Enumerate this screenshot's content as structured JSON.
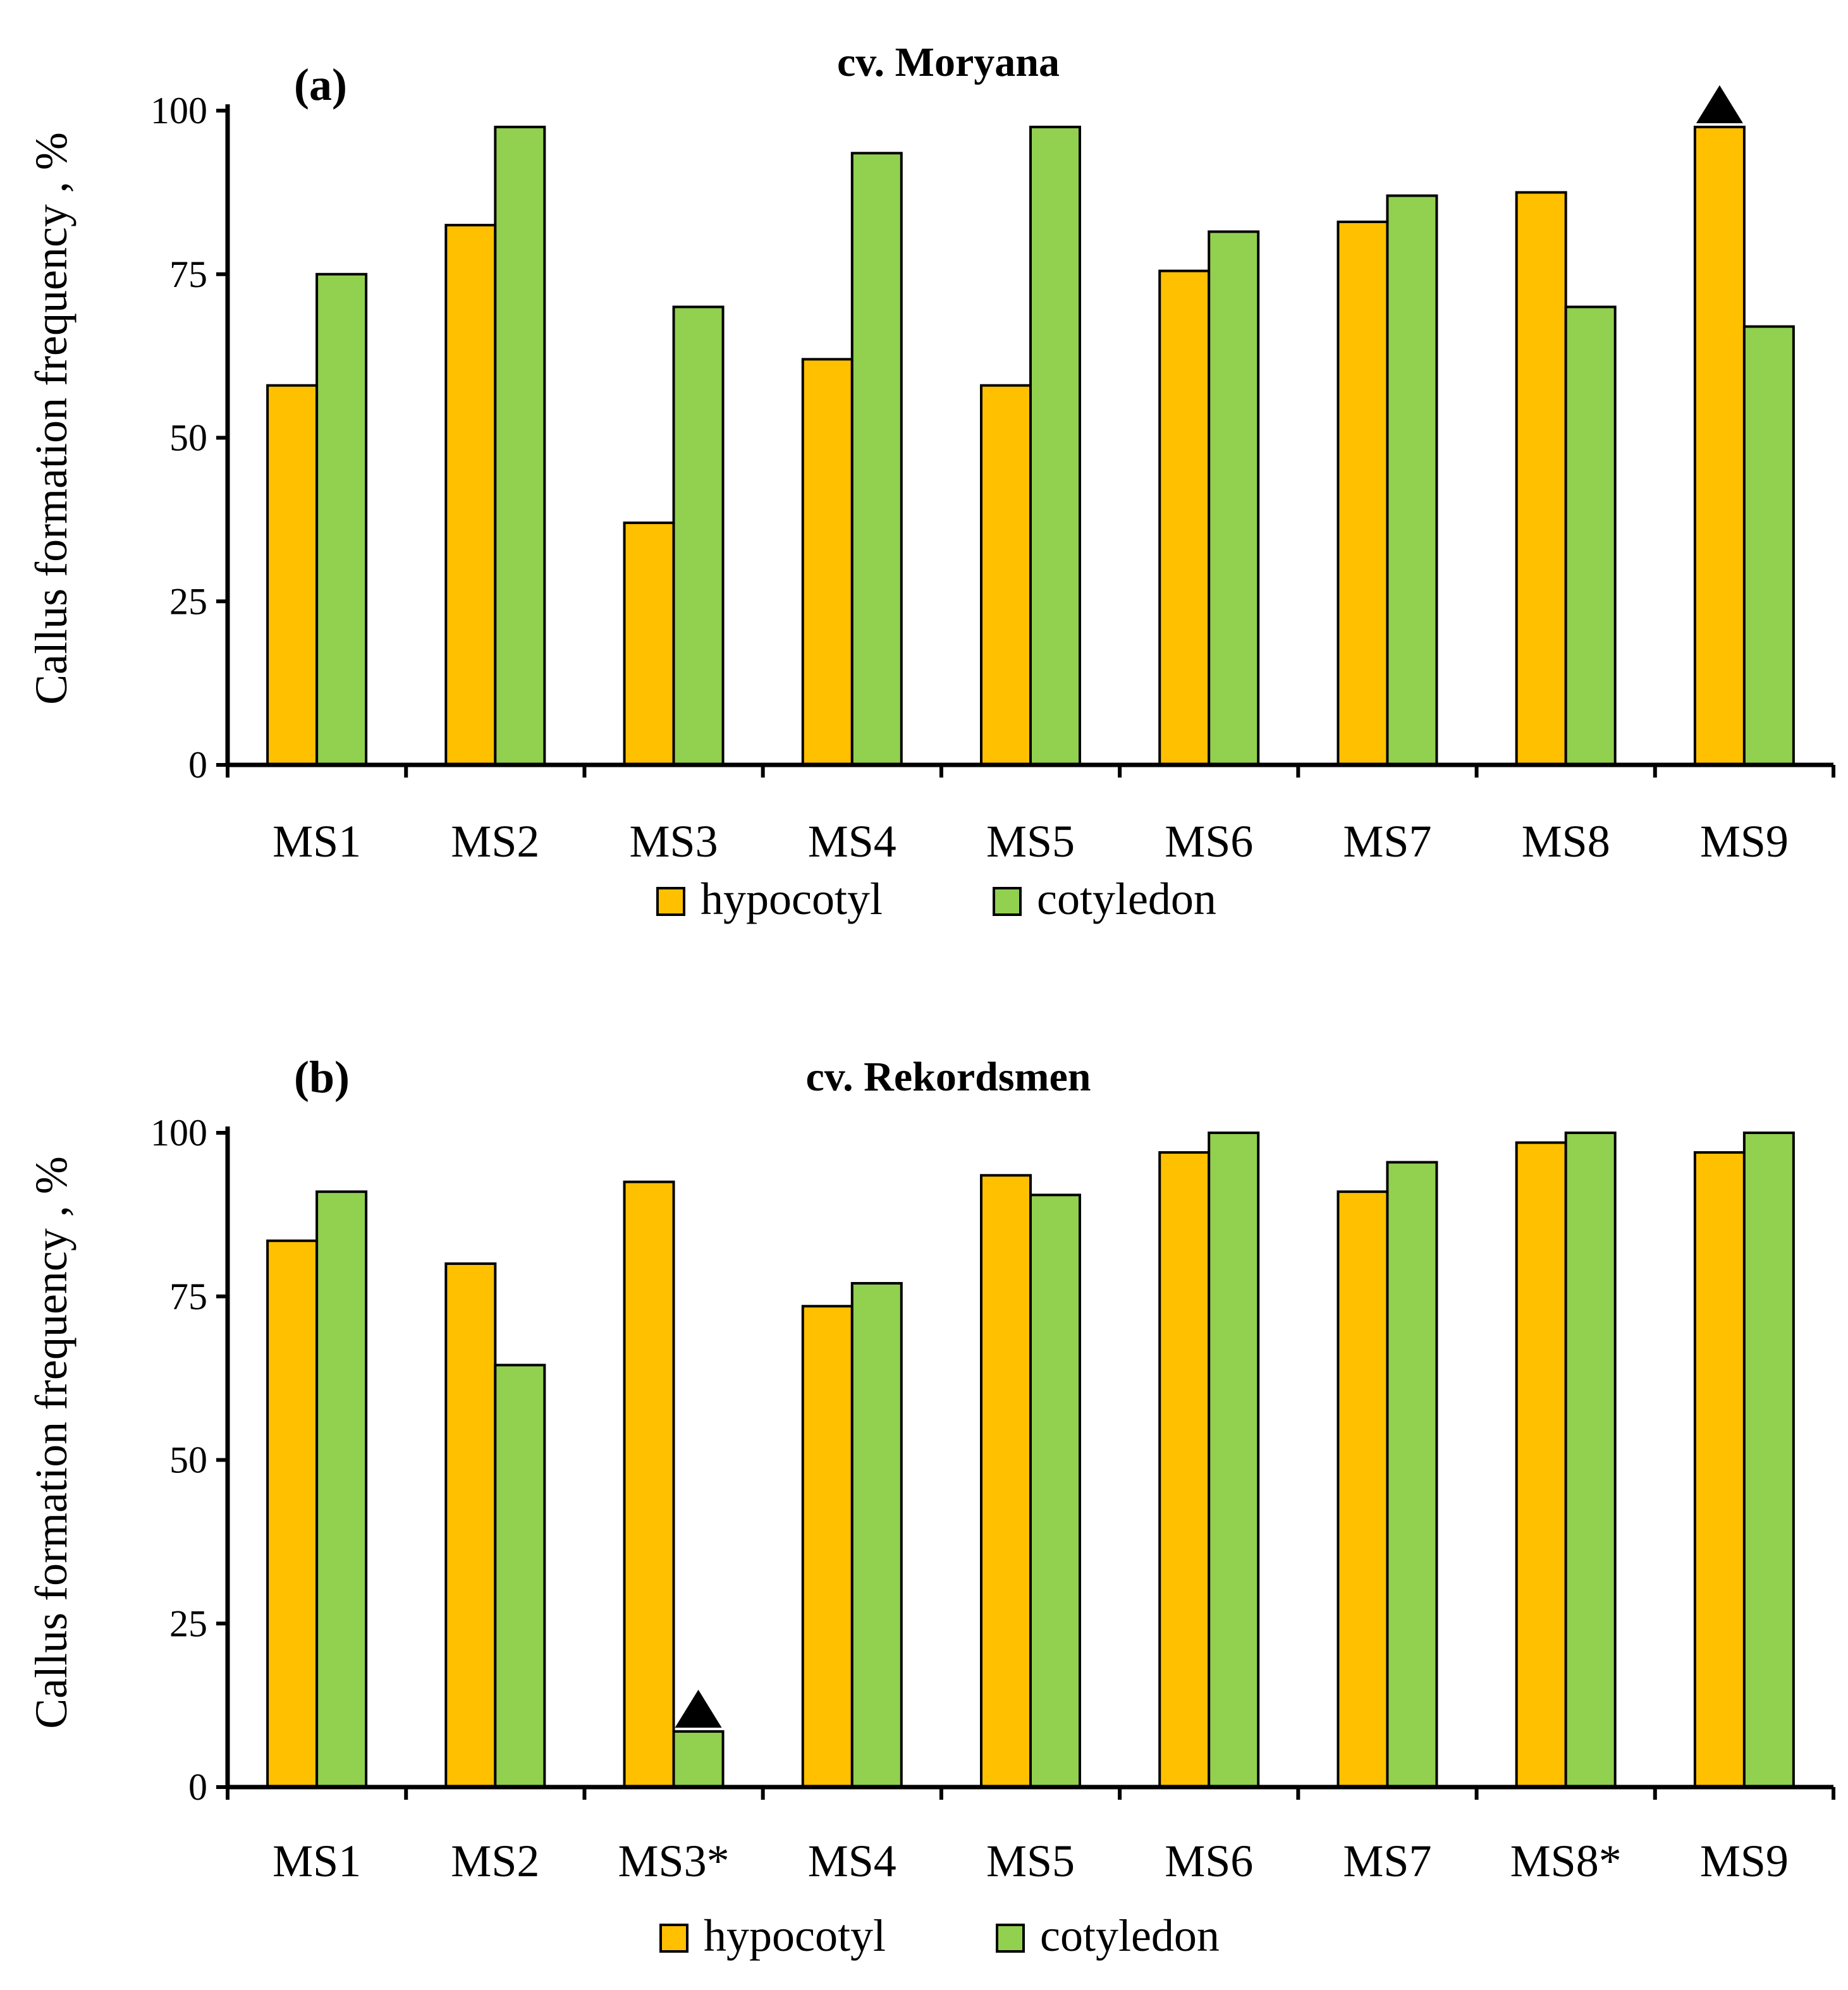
{
  "chart_data": [
    {
      "type": "bar",
      "panel_label": "(a)",
      "title": "cv. Moryana",
      "ylabel": "Callus formation frequency , %",
      "xlabel": "",
      "ylim": [
        0,
        100
      ],
      "yticks": [
        "0",
        "25",
        "50",
        "75",
        "100"
      ],
      "categories": [
        "MS1",
        "MS2",
        "MS3",
        "MS4",
        "MS5",
        "MS6",
        "MS7",
        "MS8",
        "MS9"
      ],
      "series": [
        {
          "name": "hypocotyl",
          "color": "#FFC000",
          "values": [
            58,
            82.5,
            37,
            62,
            58,
            75.5,
            83,
            87.5,
            97.5
          ]
        },
        {
          "name": "cotyledon",
          "color": "#92D050",
          "values": [
            75,
            97.5,
            70,
            93.5,
            97.5,
            81.5,
            87,
            70,
            67
          ]
        }
      ],
      "markers": [
        {
          "category": "MS9",
          "series": "hypocotyl",
          "shape": "triangle"
        }
      ],
      "legend": [
        "hypocotyl",
        "cotyledon"
      ],
      "legend_position": "bottom"
    },
    {
      "type": "bar",
      "panel_label": "(b)",
      "title": "cv. Rekordsmen",
      "ylabel": "Callus formation frequency , %",
      "xlabel": "",
      "ylim": [
        0,
        100
      ],
      "yticks": [
        "0",
        "25",
        "50",
        "75",
        "100"
      ],
      "categories": [
        "MS1",
        "MS2",
        "MS3*",
        "MS4",
        "MS5",
        "MS6",
        "MS7",
        "MS8*",
        "MS9"
      ],
      "series": [
        {
          "name": "hypocotyl",
          "color": "#FFC000",
          "values": [
            83.5,
            80,
            92.5,
            73.5,
            93.5,
            97,
            91,
            98.5,
            97
          ]
        },
        {
          "name": "cotyledon",
          "color": "#92D050",
          "values": [
            91,
            64.5,
            8.5,
            77,
            90.5,
            100,
            95.5,
            100,
            100
          ]
        }
      ],
      "markers": [
        {
          "category": "MS3*",
          "series": "cotyledon",
          "shape": "triangle"
        }
      ],
      "legend": [
        "hypocotyl",
        "cotyledon"
      ],
      "legend_position": "bottom"
    }
  ]
}
